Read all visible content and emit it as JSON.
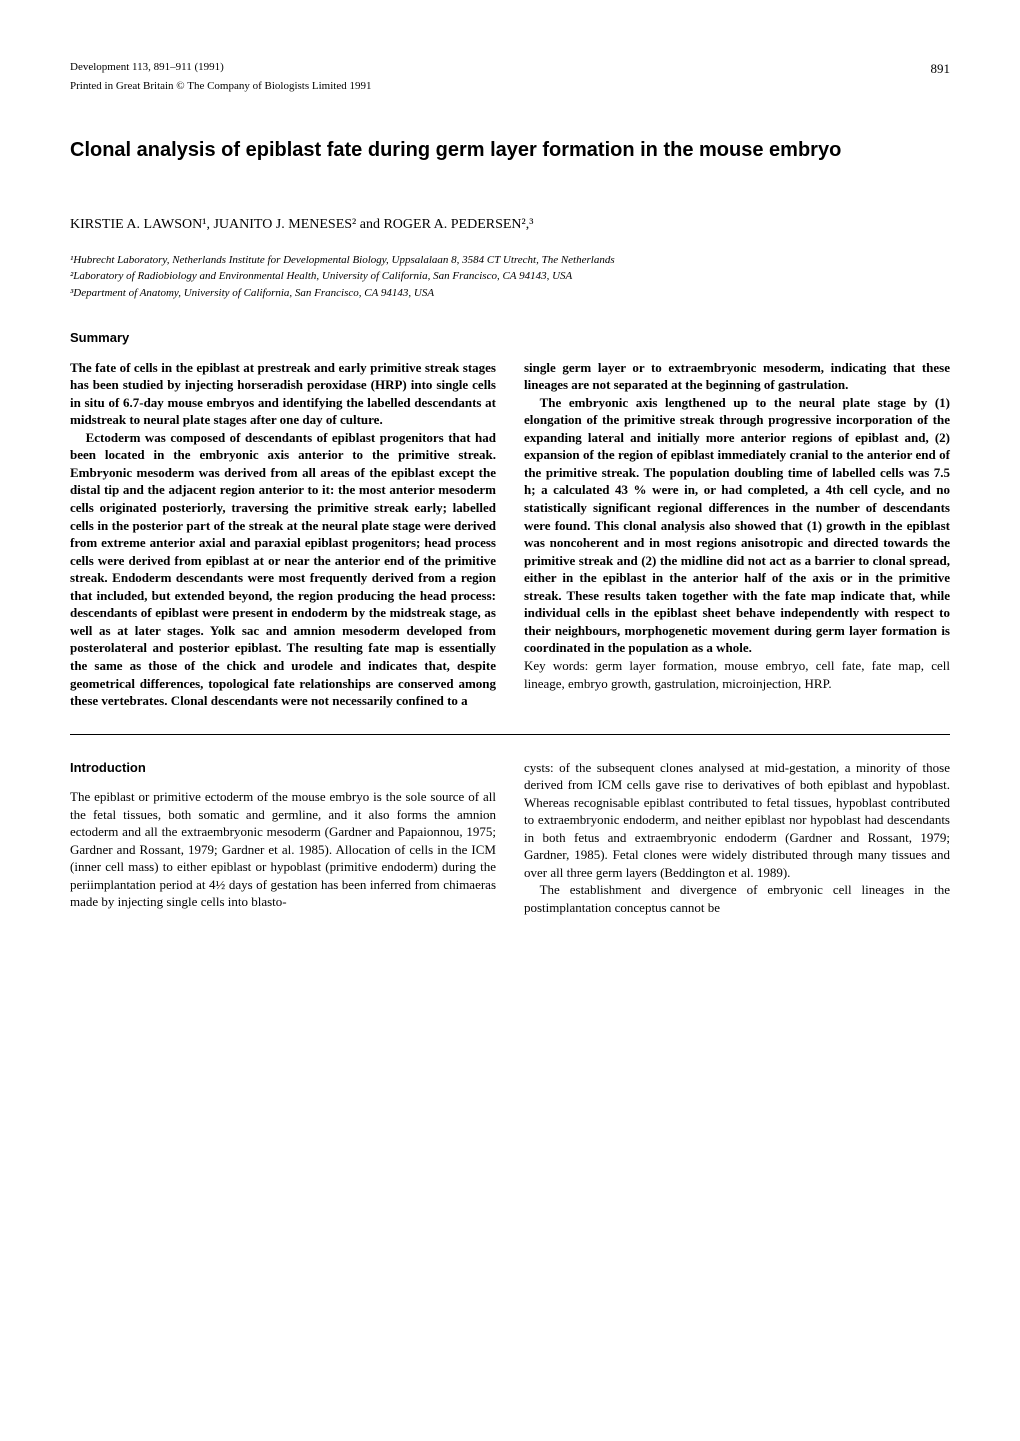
{
  "page_number": "891",
  "header": {
    "line1": "Development 113, 891–911 (1991)",
    "line2": "Printed in Great Britain © The Company of Biologists Limited 1991"
  },
  "title": "Clonal analysis of epiblast fate during germ layer formation in the mouse embryo",
  "authors": "KIRSTIE A. LAWSON¹, JUANITO J. MENESES² and ROGER A. PEDERSEN²,³",
  "affiliations": {
    "a1": "¹Hubrecht Laboratory, Netherlands Institute for Developmental Biology, Uppsalalaan 8, 3584 CT Utrecht, The Netherlands",
    "a2": "²Laboratory of Radiobiology and Environmental Health, University of California, San Francisco, CA 94143, USA",
    "a3": "³Department of Anatomy, University of California, San Francisco, CA 94143, USA"
  },
  "summary_heading": "Summary",
  "summary": {
    "p1": "The fate of cells in the epiblast at prestreak and early primitive streak stages has been studied by injecting horseradish peroxidase (HRP) into single cells in situ of 6.7-day mouse embryos and identifying the labelled descendants at midstreak to neural plate stages after one day of culture.",
    "p2": "Ectoderm was composed of descendants of epiblast progenitors that had been located in the embryonic axis anterior to the primitive streak. Embryonic mesoderm was derived from all areas of the epiblast except the distal tip and the adjacent region anterior to it: the most anterior mesoderm cells originated posteriorly, traversing the primitive streak early; labelled cells in the posterior part of the streak at the neural plate stage were derived from extreme anterior axial and paraxial epiblast progenitors; head process cells were derived from epiblast at or near the anterior end of the primitive streak. Endoderm descendants were most frequently derived from a region that included, but extended beyond, the region producing the head process: descendants of epiblast were present in endoderm by the midstreak stage, as well as at later stages. Yolk sac and amnion mesoderm developed from posterolateral and posterior epiblast. The resulting fate map is essentially the same as those of the chick and urodele and indicates that, despite geometrical differences, topological fate relationships are conserved among these vertebrates. Clonal descendants were not necessarily confined to a",
    "p3": "single germ layer or to extraembryonic mesoderm, indicating that these lineages are not separated at the beginning of gastrulation.",
    "p4": "The embryonic axis lengthened up to the neural plate stage by (1) elongation of the primitive streak through progressive incorporation of the expanding lateral and initially more anterior regions of epiblast and, (2) expansion of the region of epiblast immediately cranial to the anterior end of the primitive streak. The population doubling time of labelled cells was 7.5 h; a calculated 43 % were in, or had completed, a 4th cell cycle, and no statistically significant regional differences in the number of descendants were found. This clonal analysis also showed that (1) growth in the epiblast was noncoherent and in most regions anisotropic and directed towards the primitive streak and (2) the midline did not act as a barrier to clonal spread, either in the epiblast in the anterior half of the axis or in the primitive streak. These results taken together with the fate map indicate that, while individual cells in the epiblast sheet behave independently with respect to their neighbours, morphogenetic movement during germ layer formation is coordinated in the population as a whole."
  },
  "keywords": "Key words: germ layer formation, mouse embryo, cell fate, fate map, cell lineage, embryo growth, gastrulation, microinjection, HRP.",
  "intro_heading": "Introduction",
  "intro": {
    "p1": "The epiblast or primitive ectoderm of the mouse embryo is the sole source of all the fetal tissues, both somatic and germline, and it also forms the amnion ectoderm and all the extraembryonic mesoderm (Gardner and Papaionnou, 1975; Gardner and Rossant, 1979; Gardner et al. 1985). Allocation of cells in the ICM (inner cell mass) to either epiblast or hypoblast (primitive endoderm) during the periimplantation period at 4½ days of gestation has been inferred from chimaeras made by injecting single cells into blasto-",
    "p2": "cysts: of the subsequent clones analysed at mid-gestation, a minority of those derived from ICM cells gave rise to derivatives of both epiblast and hypoblast. Whereas recognisable epiblast contributed to fetal tissues, hypoblast contributed to extraembryonic endoderm, and neither epiblast nor hypoblast had descendants in both fetus and extraembryonic endoderm (Gardner and Rossant, 1979; Gardner, 1985). Fetal clones were widely distributed through many tissues and over all three germ layers (Beddington et al. 1989).",
    "p3": "The establishment and divergence of embryonic cell lineages in the postimplantation conceptus cannot be"
  }
}
